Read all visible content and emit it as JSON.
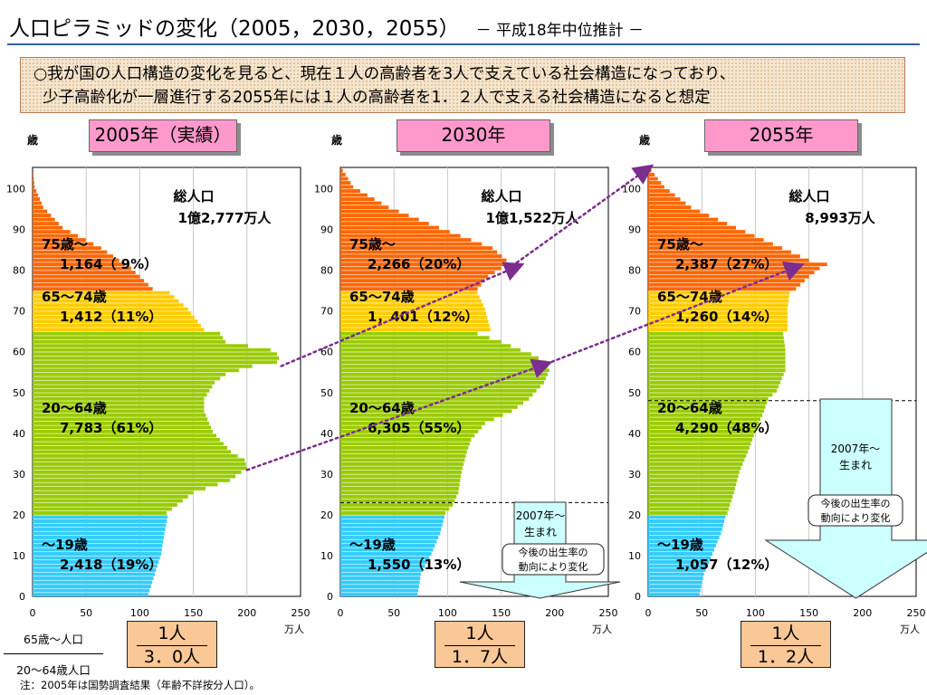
{
  "header": {
    "title": "人口ピラミッドの変化（2005，2030，2055）",
    "subtitle": "－ 平成18年中位推計 －"
  },
  "summary": {
    "line1": "○我が国の人口構造の変化を見ると、現在１人の高齢者を3人で支えている社会構造になっており、",
    "line2": "少子高齢化が一層進行する2055年には１人の高齢者を1．２人で支える社会構造になると想定"
  },
  "y_axis_unit": "歳",
  "x_axis_unit": "万人",
  "colors": {
    "age_0_19": "#33ccff",
    "age_20_64": "#99cc00",
    "age_65_74": "#ffcc00",
    "age_75_plus": "#ff6600",
    "year_box": "#ff99cc",
    "ratio_box": "#fac796",
    "arrow_line": "#7b2e8e",
    "callout_arrow": "#ccffff"
  },
  "ratio_legend": {
    "numerator": "65歳～人口",
    "denominator": "20～64歳人口"
  },
  "footnote": "注：2005年は国勢調査結果（年齢不詳按分人口）。",
  "callout": {
    "label": "2007年～\n生まれ",
    "note": "今後の出生率の\n動向により変化"
  },
  "panels": [
    {
      "year_label": "2005年（実績）",
      "total_label": "総人口",
      "total_value": "1億2,777万人",
      "ratio_top": "1人",
      "ratio_bottom": "3．0人",
      "groups": [
        {
          "name": "75歳～",
          "value": "1,164（ 9%）"
        },
        {
          "name": "65～74歳",
          "value": "1,412（11%）"
        },
        {
          "name": "20～64歳",
          "value": "7,783（61%）"
        },
        {
          "name": "～19歳",
          "value": "2,418（19%）"
        }
      ]
    },
    {
      "year_label": "2030年",
      "total_label": "総人口",
      "total_value": "1億1,522万人",
      "ratio_top": "1人",
      "ratio_bottom": "1．7人",
      "groups": [
        {
          "name": "75歳～",
          "value": "2,266（20%）"
        },
        {
          "name": "65～74歳",
          "value": "1，401（12%）"
        },
        {
          "name": "20～64歳",
          "value": "6,305（55%）"
        },
        {
          "name": "～19歳",
          "value": "1,550（13%）"
        }
      ]
    },
    {
      "year_label": "2055年",
      "total_label": "総人口",
      "total_value": "8,993万人",
      "ratio_top": "1人",
      "ratio_bottom": "1．2人",
      "groups": [
        {
          "name": "75歳～",
          "value": "2,387（27%）"
        },
        {
          "name": "65～74歳",
          "value": "1,260（14%）"
        },
        {
          "name": "20～64歳",
          "value": "4,290（48%）"
        },
        {
          "name": "～19歳",
          "value": "1,057（12%）"
        }
      ]
    }
  ],
  "chart_data": [
    {
      "type": "area",
      "title": "2005年（実績）",
      "xlabel": "万人",
      "ylabel": "歳",
      "xlim": [
        0,
        250
      ],
      "ylim": [
        0,
        100
      ],
      "xticks": [
        0,
        50,
        100,
        150,
        200,
        250
      ],
      "yticks": [
        0,
        10,
        20,
        30,
        40,
        50,
        60,
        70,
        80,
        90,
        100
      ],
      "grid": true,
      "age_groups": [
        {
          "name": "～19歳",
          "range": [
            0,
            19
          ],
          "color": "#33ccff"
        },
        {
          "name": "20～64歳",
          "range": [
            20,
            64
          ],
          "color": "#99cc00"
        },
        {
          "name": "65～74歳",
          "range": [
            65,
            74
          ],
          "color": "#ffcc00"
        },
        {
          "name": "75歳～",
          "range": [
            75,
            105
          ],
          "color": "#ff6600"
        }
      ],
      "profile": {
        "age": [
          0,
          5,
          10,
          15,
          19,
          20,
          25,
          28,
          31,
          33,
          35,
          40,
          45,
          48,
          52,
          54,
          56,
          57,
          58,
          59,
          60,
          62,
          64,
          65,
          70,
          74,
          75,
          80,
          85,
          90,
          95,
          100,
          105
        ],
        "population": [
          108,
          114,
          120,
          123,
          126,
          125,
          150,
          184,
          200,
          198,
          185,
          168,
          160,
          160,
          170,
          180,
          205,
          228,
          230,
          228,
          222,
          180,
          175,
          160,
          145,
          128,
          112,
          92,
          64,
          28,
          10,
          2,
          0
        ]
      }
    },
    {
      "type": "area",
      "title": "2030年",
      "xlabel": "万人",
      "ylabel": "歳",
      "xlim": [
        0,
        250
      ],
      "ylim": [
        0,
        100
      ],
      "xticks": [
        0,
        50,
        100,
        150,
        200,
        250
      ],
      "yticks": [
        0,
        10,
        20,
        30,
        40,
        50,
        60,
        70,
        80,
        90,
        100
      ],
      "grid": true,
      "age_groups": [
        {
          "name": "～19歳",
          "range": [
            0,
            19
          ],
          "color": "#33ccff"
        },
        {
          "name": "20～64歳",
          "range": [
            20,
            64
          ],
          "color": "#99cc00"
        },
        {
          "name": "65～74歳",
          "range": [
            65,
            74
          ],
          "color": "#ffcc00"
        },
        {
          "name": "75歳～",
          "range": [
            75,
            105
          ],
          "color": "#ff6600"
        }
      ],
      "profile": {
        "age": [
          0,
          3,
          5,
          10,
          15,
          20,
          22,
          25,
          30,
          35,
          38,
          42,
          45,
          48,
          50,
          52,
          55,
          57,
          59,
          60,
          62,
          64,
          65,
          70,
          74,
          75,
          78,
          80,
          82,
          85,
          90,
          95,
          100,
          105
        ],
        "population": [
          72,
          74,
          75,
          85,
          93,
          98,
          105,
          110,
          113,
          118,
          122,
          135,
          160,
          176,
          183,
          190,
          195,
          192,
          178,
          168,
          150,
          128,
          140,
          135,
          128,
          128,
          138,
          150,
          155,
          142,
          92,
          45,
          12,
          0
        ]
      }
    },
    {
      "type": "area",
      "title": "2055年",
      "xlabel": "万人",
      "ylabel": "歳",
      "xlim": [
        0,
        250
      ],
      "ylim": [
        0,
        100
      ],
      "xticks": [
        0,
        50,
        100,
        150,
        200,
        250
      ],
      "yticks": [
        0,
        10,
        20,
        30,
        40,
        50,
        60,
        70,
        80,
        90,
        100
      ],
      "grid": true,
      "age_groups": [
        {
          "name": "～19歳",
          "range": [
            0,
            19
          ],
          "color": "#33ccff"
        },
        {
          "name": "20～64歳",
          "range": [
            20,
            64
          ],
          "color": "#99cc00"
        },
        {
          "name": "65～74歳",
          "range": [
            65,
            74
          ],
          "color": "#ffcc00"
        },
        {
          "name": "75歳～",
          "range": [
            75,
            105
          ],
          "color": "#ff6600"
        }
      ],
      "profile": {
        "age": [
          0,
          5,
          10,
          15,
          19,
          20,
          25,
          30,
          35,
          40,
          45,
          48,
          50,
          55,
          60,
          64,
          65,
          70,
          74,
          75,
          78,
          80,
          81,
          82,
          85,
          90,
          95,
          100,
          105
        ],
        "population": [
          48,
          52,
          60,
          68,
          72,
          74,
          80,
          85,
          93,
          100,
          108,
          112,
          120,
          128,
          128,
          126,
          130,
          130,
          132,
          138,
          150,
          160,
          167,
          150,
          125,
          82,
          40,
          15,
          0
        ]
      }
    }
  ]
}
